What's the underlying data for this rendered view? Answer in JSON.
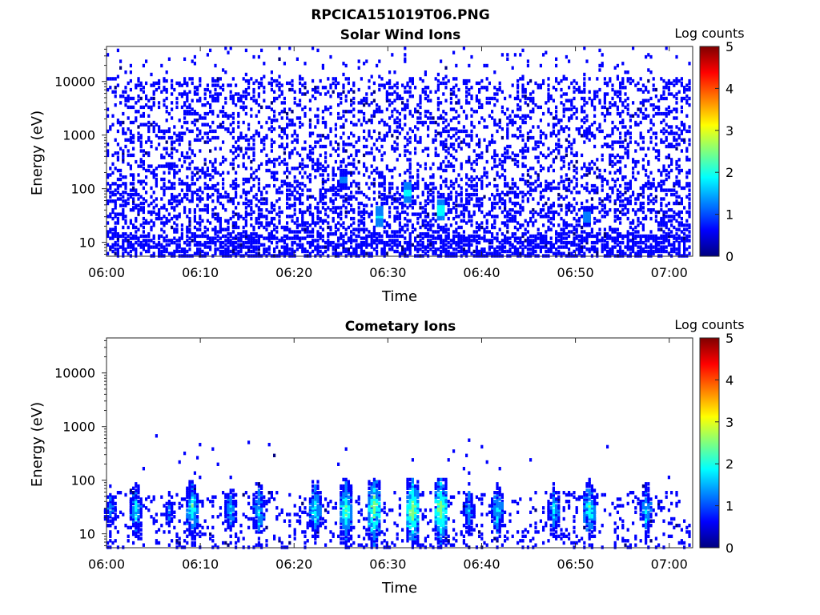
{
  "figure_title": "RPCICA151019T06.PNG",
  "colormap": [
    "#00007f",
    "#0000ff",
    "#007fff",
    "#00ffff",
    "#7fff7f",
    "#ffff00",
    "#ff7f00",
    "#ff0000",
    "#7f0000"
  ],
  "chart_data": [
    {
      "type": "heatmap",
      "title": "Solar Wind Ions",
      "xlabel": "Time",
      "ylabel": "Energy (eV)",
      "yscale": "log",
      "ylim": [
        5.5,
        45000
      ],
      "xlim_minutes": [
        0,
        62.5
      ],
      "x_ticks": [
        "06:00",
        "06:10",
        "06:20",
        "06:30",
        "06:40",
        "06:50",
        "07:00"
      ],
      "y_ticks": [
        10,
        100,
        1000,
        10000
      ],
      "y_tick_labels": [
        "10",
        "100",
        "1000",
        "10000"
      ],
      "colorbar": {
        "label": "Log counts",
        "ticks": [
          "0",
          "1",
          "2",
          "3",
          "4",
          "5"
        ],
        "range": [
          0,
          5
        ]
      },
      "pattern": "background",
      "hotspots": [
        {
          "time": "06:25",
          "energy": 150,
          "value": 1.2
        },
        {
          "time": "06:29",
          "energy": 30,
          "value": 1.6
        },
        {
          "time": "06:32",
          "energy": 80,
          "value": 1.8
        },
        {
          "time": "06:35.5",
          "energy": 40,
          "value": 2.0
        },
        {
          "time": "06:51",
          "energy": 30,
          "value": 1.3
        }
      ]
    },
    {
      "type": "heatmap",
      "title": "Cometary Ions",
      "xlabel": "Time",
      "ylabel": "Energy (eV)",
      "yscale": "log",
      "ylim": [
        5.5,
        45000
      ],
      "xlim_minutes": [
        0,
        62.5
      ],
      "x_ticks": [
        "06:00",
        "06:10",
        "06:20",
        "06:30",
        "06:40",
        "06:50",
        "07:00"
      ],
      "y_ticks": [
        10,
        100,
        1000,
        10000
      ],
      "y_tick_labels": [
        "10",
        "100",
        "1000",
        "10000"
      ],
      "colorbar": {
        "label": "Log counts",
        "ticks": [
          "0",
          "1",
          "2",
          "3",
          "4",
          "5"
        ],
        "range": [
          0,
          5
        ]
      },
      "pattern": "bursts",
      "bursts": [
        {
          "time": "06:00.3",
          "value": 1.6
        },
        {
          "time": "06:03",
          "value": 2.0
        },
        {
          "time": "06:06.5",
          "value": 1.4
        },
        {
          "time": "06:09",
          "value": 2.3
        },
        {
          "time": "06:13",
          "value": 1.8
        },
        {
          "time": "06:16",
          "value": 2.0
        },
        {
          "time": "06:22",
          "value": 2.2
        },
        {
          "time": "06:25.5",
          "value": 2.5
        },
        {
          "time": "06:28.5",
          "value": 2.8
        },
        {
          "time": "06:32.5",
          "value": 2.9
        },
        {
          "time": "06:35.5",
          "value": 2.9
        },
        {
          "time": "06:38.5",
          "value": 1.8
        },
        {
          "time": "06:41.5",
          "value": 2.0
        },
        {
          "time": "06:47.5",
          "value": 1.9
        },
        {
          "time": "06:51.5",
          "value": 2.3
        },
        {
          "time": "06:57.5",
          "value": 2.0
        }
      ]
    }
  ]
}
